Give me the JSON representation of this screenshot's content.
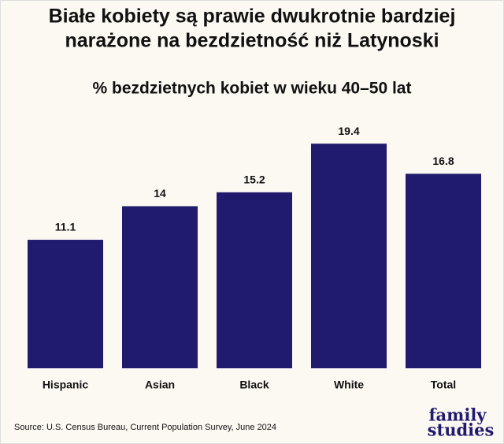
{
  "chart_data": {
    "type": "bar",
    "title": [
      "Białe kobiety są prawie dwukrotnie bardziej",
      "narażone na bezdzietność niż Latynoski"
    ],
    "subtitle": "% bezdzietnych kobiet w wieku 40–50 lat",
    "categories": [
      "Hispanic",
      "Asian",
      "Black",
      "White",
      "Total"
    ],
    "values": [
      11.1,
      14,
      15.2,
      19.4,
      16.8
    ],
    "color": "#211b6e",
    "ylim": [
      0,
      22
    ],
    "source": "Source: U.S. Census Bureau, Current Population Survey, June 2024",
    "logo": [
      "family",
      "studies"
    ]
  }
}
